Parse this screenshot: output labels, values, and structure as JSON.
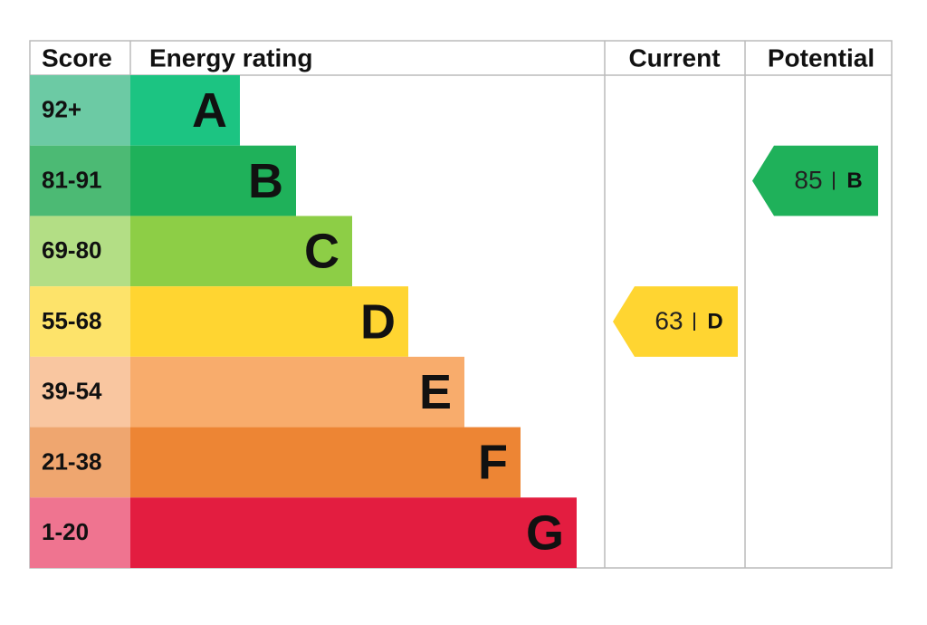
{
  "header": {
    "score": "Score",
    "rating": "Energy rating",
    "current": "Current",
    "potential": "Potential"
  },
  "bands": [
    {
      "score": "92+",
      "letter": "A"
    },
    {
      "score": "81-91",
      "letter": "B"
    },
    {
      "score": "69-80",
      "letter": "C"
    },
    {
      "score": "55-68",
      "letter": "D"
    },
    {
      "score": "39-54",
      "letter": "E"
    },
    {
      "score": "21-38",
      "letter": "F"
    },
    {
      "score": "1-20",
      "letter": "G"
    }
  ],
  "current": {
    "score": 63,
    "letter": "D"
  },
  "potential": {
    "score": 85,
    "letter": "B"
  }
}
